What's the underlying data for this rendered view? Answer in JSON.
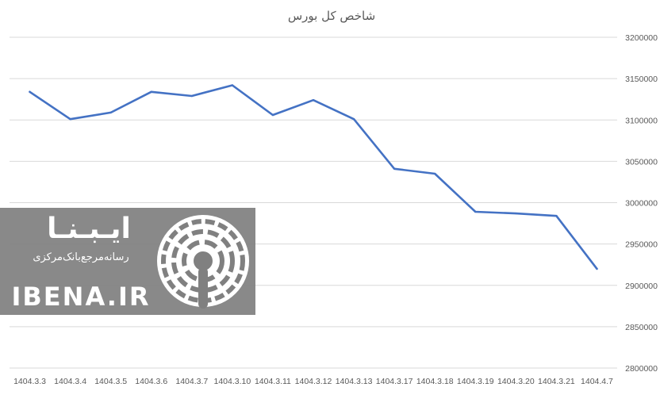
{
  "chart_data": {
    "type": "line",
    "title": "شاخص کل بورس",
    "categories": [
      "1404.3.3",
      "1404.3.4",
      "1404.3.5",
      "1404.3.6",
      "1404.3.7",
      "1404.3.10",
      "1404.3.11",
      "1404.3.12",
      "1404.3.13",
      "1404.3.17",
      "1404.3.18",
      "1404.3.19",
      "1404.3.20",
      "1404.3.21",
      "1404.4.7"
    ],
    "series": [
      {
        "values": [
          3134000,
          3101000,
          3109000,
          3134000,
          3129000,
          3142000,
          3106000,
          3124000,
          3101000,
          3041000,
          3035000,
          2989000,
          2987000,
          2984000,
          2920000
        ]
      }
    ],
    "ylim": [
      2800000,
      3200000
    ],
    "yticks": [
      3200000,
      3150000,
      3100000,
      3050000,
      3000000,
      2950000,
      2900000,
      2850000,
      2800000
    ],
    "grid": true,
    "legend": "none",
    "colors": {
      "series": "#4472c4",
      "grid": "#d9d9d9",
      "text": "#595959"
    }
  },
  "watermark": {
    "brand_persian": "ایـبـنـا",
    "tagline": "رسانه‌مرجع‌بانک‌مرکزی",
    "site": "IBENA.IR",
    "icon": "broadcast-signal-icon",
    "colors": {
      "band": "#808080",
      "text": "#ffffff"
    }
  }
}
